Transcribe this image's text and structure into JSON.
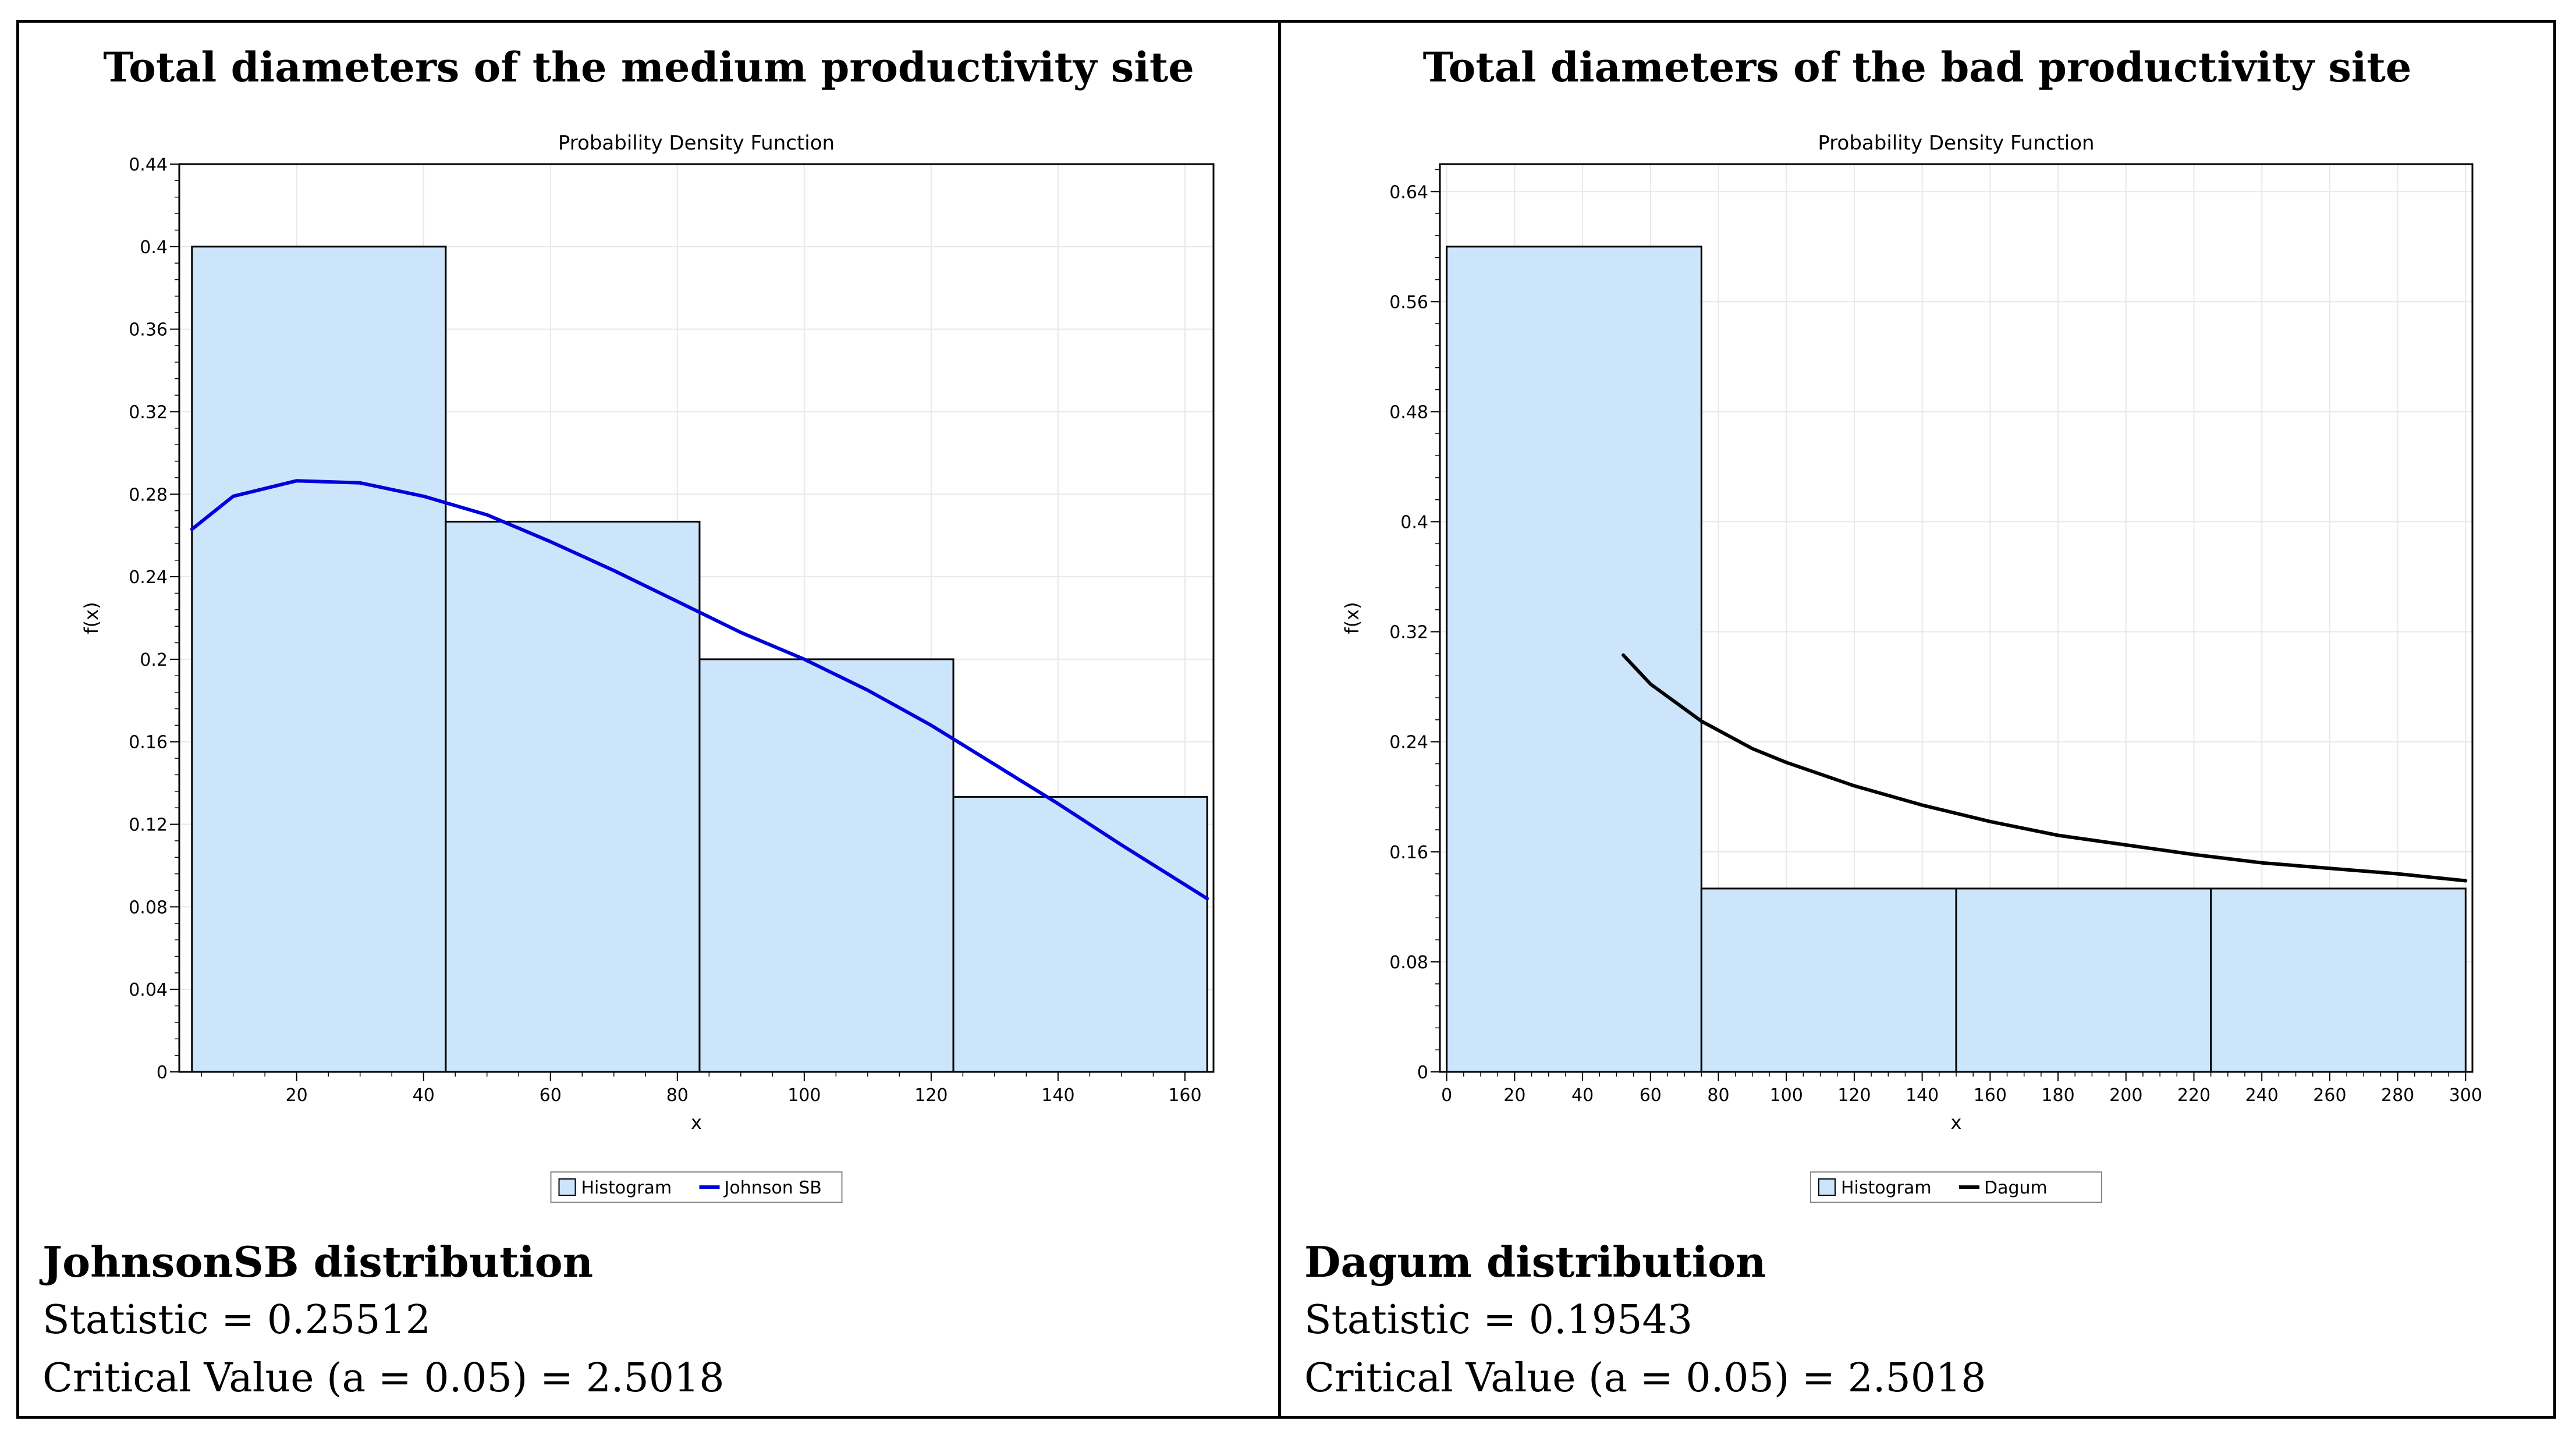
{
  "panels": [
    {
      "title": "Total diameters of the medium productivity site",
      "distribution": "JohnsonSB distribution",
      "statistic": "Statistic = 0.25512",
      "critical_value": "Critical Value (a = 0.05) = 2.5018"
    },
    {
      "title": "Total diameters of the bad productivity site",
      "distribution": "Dagum distribution",
      "statistic": "Statistic = 0.19543",
      "critical_value": "Critical Value (a = 0.05) = 2.5018"
    }
  ],
  "colors": {
    "bar_fill": "#cce5fb",
    "bar_stroke": "#000000",
    "grid": "#e8e8e8",
    "johnson_line": "#0000dd",
    "dagum_line": "#000000"
  },
  "chart_data": [
    {
      "type": "bar",
      "title": "Probability Density Function",
      "xlabel": "x",
      "ylabel": "f(x)",
      "xlim": [
        1.5,
        164.5
      ],
      "ylim": [
        0,
        0.44
      ],
      "xticks": [
        20,
        40,
        60,
        80,
        100,
        120,
        140,
        160
      ],
      "yticks": [
        0,
        0.04,
        0.08,
        0.12,
        0.16,
        0.2,
        0.24,
        0.28,
        0.32,
        0.36,
        0.4,
        0.44
      ],
      "histogram": {
        "name": "Histogram",
        "bins": [
          {
            "from": 3.5,
            "to": 43.5,
            "value": 0.4
          },
          {
            "from": 43.5,
            "to": 83.5,
            "value": 0.2667
          },
          {
            "from": 83.5,
            "to": 123.5,
            "value": 0.2
          },
          {
            "from": 123.5,
            "to": 163.5,
            "value": 0.1333
          }
        ]
      },
      "curve": {
        "name": "Johnson SB",
        "x": [
          3.5,
          10,
          20,
          30,
          40,
          50,
          60,
          70,
          80,
          90,
          100,
          110,
          120,
          130,
          140,
          150,
          163.5
        ],
        "y": [
          0.263,
          0.279,
          0.2865,
          0.2855,
          0.279,
          0.27,
          0.257,
          0.243,
          0.228,
          0.213,
          0.2,
          0.185,
          0.168,
          0.149,
          0.13,
          0.11,
          0.084
        ]
      },
      "legend": [
        "Histogram",
        "Johnson SB"
      ]
    },
    {
      "type": "bar",
      "title": "Probability Density Function",
      "xlabel": "x",
      "ylabel": "f(x)",
      "xlim": [
        -2,
        302
      ],
      "ylim": [
        0,
        0.66
      ],
      "xticks": [
        0,
        20,
        40,
        60,
        80,
        100,
        120,
        140,
        160,
        180,
        200,
        220,
        240,
        260,
        280,
        300
      ],
      "yticks": [
        0,
        0.08,
        0.16,
        0.24,
        0.32,
        0.4,
        0.48,
        0.56,
        0.64
      ],
      "histogram": {
        "name": "Histogram",
        "bins": [
          {
            "from": 0,
            "to": 75,
            "value": 0.6
          },
          {
            "from": 75,
            "to": 150,
            "value": 0.1333
          },
          {
            "from": 150,
            "to": 225,
            "value": 0.1333
          },
          {
            "from": 225,
            "to": 300,
            "value": 0.1333
          }
        ]
      },
      "curve": {
        "name": "Dagum",
        "x": [
          52,
          60,
          75,
          90,
          100,
          120,
          140,
          160,
          180,
          200,
          220,
          240,
          260,
          280,
          300
        ],
        "y": [
          0.303,
          0.282,
          0.255,
          0.235,
          0.225,
          0.208,
          0.194,
          0.182,
          0.172,
          0.165,
          0.158,
          0.152,
          0.148,
          0.144,
          0.139
        ]
      },
      "legend": [
        "Histogram",
        "Dagum"
      ]
    }
  ]
}
